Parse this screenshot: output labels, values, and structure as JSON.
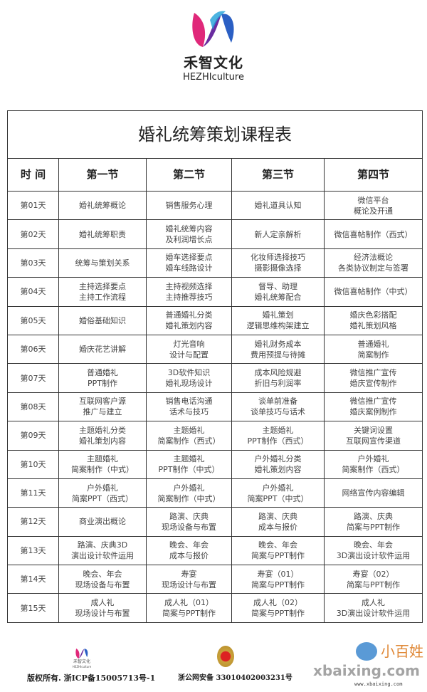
{
  "brand": {
    "name_cn": "禾智文化",
    "name_en": "HEZHIculture",
    "colors": {
      "pink": "#e0287a",
      "blue": "#2b5fc4",
      "purple": "#6a2ca0"
    }
  },
  "table": {
    "title": "婚礼统筹策划课程表",
    "headers": [
      "时 间",
      "第一节",
      "第二节",
      "第三节",
      "第四节"
    ],
    "rows": [
      [
        "第01天",
        "婚礼统筹概论",
        "销售服务心理",
        "婚礼道具认知",
        "微信平台\n概论及开通"
      ],
      [
        "第02天",
        "婚礼统筹职责",
        "婚礼统筹内容\n及利润增长点",
        "新人定亲解析",
        "微信喜帖制作（西式）"
      ],
      [
        "第03天",
        "统筹与策划关系",
        "婚车选择要点\n婚车线路设计",
        "化妆师选择技巧\n摄影摄像选择",
        "经济法概论\n各类协议制定与签署"
      ],
      [
        "第04天",
        "主持选择要点\n主持工作流程",
        "主持视频选择\n主持推荐技巧",
        "督导、助理\n婚礼统筹配合",
        "微信喜帖制作（中式）"
      ],
      [
        "第05天",
        "婚俗基础知识",
        "普通婚礼分类\n婚礼策划内容",
        "婚礼策划\n逻辑思维构架建立",
        "婚庆色彩搭配\n婚礼策划风格"
      ],
      [
        "第06天",
        "婚庆花艺讲解",
        "灯光音响\n设计与配置",
        "婚礼财务成本\n费用预提与待摊",
        "普通婚礼\n简案制作"
      ],
      [
        "第07天",
        "普通婚礼\nPPT制作",
        "3D软件知识\n婚礼现场设计",
        "成本风险规避\n折旧与利润率",
        "微信推广宣传\n婚庆宣传制作"
      ],
      [
        "第08天",
        "互联网客户源\n推广与建立",
        "销售电话沟通\n话术与技巧",
        "谈单前准备\n谈单技巧与话术",
        "微信推广宣传\n婚庆案例制作"
      ],
      [
        "第09天",
        "主题婚礼分类\n婚礼策划内容",
        "主题婚礼\n简案制作（西式）",
        "主题婚礼\nPPT制作（西式）",
        "关键词设置\n互联网宣传渠道"
      ],
      [
        "第10天",
        "主题婚礼\n简案制作（中式）",
        "主题婚礼\nPPT制作（中式）",
        "户外婚礼分类\n婚礼策划内容",
        "户外婚礼\n简案制作（西式）"
      ],
      [
        "第11天",
        "户外婚礼\n简案PPT（西式）",
        "户外婚礼\n简案制作（中式）",
        "户外婚礼\n简案PPT（中式）",
        "网络宣传内容编辑"
      ],
      [
        "第12天",
        "商业演出概论",
        "路演、庆典\n现场设备与布置",
        "路演、庆典\n成本与报价",
        "路演、庆典\n简案与PPT制作"
      ],
      [
        "第13天",
        "路演、庆典3D\n演出设计软件运用",
        "晚会、年会\n成本与报价",
        "晚会、年会\n简案与PPT制作",
        "晚会、年会\n3D演出设计软件运用"
      ],
      [
        "第14天",
        "晚会、年会\n现场设备与布置",
        "寿宴\n现场设计与布置",
        "寿宴（01）\n简案与PPT制作",
        "寿宴（02）\n简案与PPT制作"
      ],
      [
        "第15天",
        "成人礼\n现场设计与布置",
        "成人礼（01）\n简案与PPT制作",
        "成人礼（02）\n简案与PPT制作",
        "成人礼\n3D演出设计软件运用"
      ]
    ]
  },
  "footer": {
    "small_logo_cn": "禾智文化",
    "small_logo_en": "HEZHIculture",
    "copyright": "版权所有. 浙ICP备15005713号-1",
    "police_record": "浙公网安备 33010402003231号",
    "watermark": "xbaixing.com",
    "watermark_cn": "小百姓",
    "watermark_url": "www.xbaixing.com"
  }
}
